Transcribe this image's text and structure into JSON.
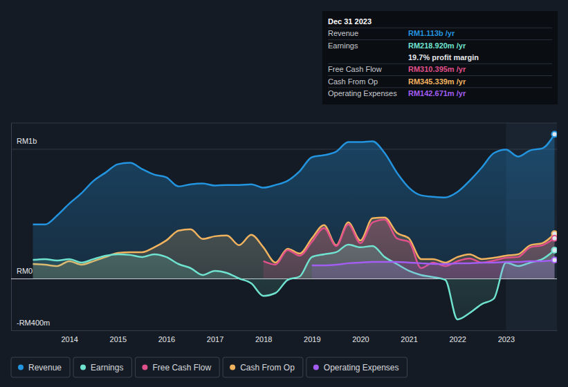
{
  "chart_data": {
    "type": "line",
    "x": [
      2013.25,
      2013.5,
      2013.75,
      2014.0,
      2014.25,
      2014.5,
      2014.75,
      2015.0,
      2015.25,
      2015.5,
      2015.75,
      2016.0,
      2016.25,
      2016.5,
      2016.75,
      2017.0,
      2017.25,
      2017.5,
      2017.75,
      2018.0,
      2018.25,
      2018.5,
      2018.75,
      2019.0,
      2019.25,
      2019.5,
      2019.75,
      2020.0,
      2020.25,
      2020.5,
      2020.75,
      2021.0,
      2021.25,
      2021.5,
      2021.75,
      2022.0,
      2022.25,
      2022.5,
      2022.75,
      2023.0,
      2023.25,
      2023.5,
      2023.75,
      2024.0
    ],
    "xlim": [
      2012.8,
      2024.05
    ],
    "xticks": [
      2014,
      2015,
      2016,
      2017,
      2018,
      2019,
      2020,
      2021,
      2022,
      2023
    ],
    "ylim": [
      -400,
      1200
    ],
    "yticks": [
      {
        "value": -400,
        "label": "-RM400m"
      },
      {
        "value": 0,
        "label": "RM0"
      },
      {
        "value": 1000,
        "label": "RM1b"
      }
    ],
    "grid": true,
    "legend": "bottom",
    "series": [
      {
        "name": "Revenue",
        "color": "#2394df",
        "values": [
          417,
          417,
          487,
          578,
          658,
          754,
          818,
          882,
          893,
          845,
          802,
          781,
          711,
          727,
          733,
          717,
          722,
          722,
          727,
          701,
          722,
          754,
          829,
          936,
          952,
          979,
          1053,
          1053,
          1059,
          968,
          818,
          701,
          642,
          631,
          626,
          668,
          754,
          856,
          968,
          995,
          941,
          989,
          1005,
          1113
        ]
      },
      {
        "name": "Earnings",
        "color": "#6fe3cf",
        "values": [
          144,
          150,
          139,
          150,
          123,
          150,
          176,
          187,
          182,
          166,
          187,
          166,
          112,
          80,
          27,
          59,
          43,
          0,
          -37,
          -134,
          -112,
          -11,
          16,
          166,
          187,
          203,
          262,
          241,
          251,
          166,
          112,
          59,
          27,
          11,
          -11,
          -316,
          -267,
          -198,
          -155,
          123,
          96,
          123,
          150,
          218.92
        ]
      },
      {
        "name": "Free Cash Flow",
        "color": "#e0508a",
        "values": [
          null,
          null,
          null,
          null,
          null,
          null,
          null,
          null,
          null,
          null,
          null,
          null,
          null,
          null,
          null,
          null,
          null,
          null,
          null,
          134,
          107,
          219,
          176,
          283,
          390,
          251,
          417,
          273,
          433,
          455,
          310,
          283,
          80,
          123,
          96,
          134,
          155,
          123,
          139,
          160,
          166,
          241,
          257,
          310.395
        ]
      },
      {
        "name": "Cash From Op",
        "color": "#f2b35f",
        "values": [
          112,
          107,
          96,
          134,
          107,
          134,
          166,
          198,
          203,
          203,
          241,
          294,
          369,
          380,
          305,
          326,
          332,
          257,
          337,
          241,
          123,
          230,
          193,
          310,
          412,
          257,
          433,
          294,
          465,
          471,
          353,
          310,
          150,
          150,
          123,
          166,
          187,
          150,
          160,
          176,
          187,
          257,
          273,
          345.339
        ]
      },
      {
        "name": "Operating Expenses",
        "color": "#a35df2",
        "values": [
          null,
          null,
          null,
          null,
          null,
          null,
          null,
          null,
          null,
          null,
          null,
          null,
          null,
          null,
          null,
          null,
          null,
          null,
          null,
          null,
          null,
          null,
          null,
          102,
          102,
          107,
          118,
          123,
          128,
          128,
          128,
          123,
          118,
          112,
          112,
          118,
          118,
          123,
          123,
          128,
          128,
          134,
          134,
          142.671
        ]
      }
    ],
    "tooltip": {
      "title": "Dec 31 2023",
      "rows": [
        {
          "label": "Revenue",
          "value": "RM1.113b /yr"
        },
        {
          "label": "Earnings",
          "value": "RM218.920m /yr",
          "note": "19.7% profit margin"
        },
        {
          "label": "Free Cash Flow",
          "value": "RM310.395m /yr"
        },
        {
          "label": "Cash From Op",
          "value": "RM345.339m /yr"
        },
        {
          "label": "Operating Expenses",
          "value": "RM142.671m /yr"
        }
      ]
    }
  }
}
